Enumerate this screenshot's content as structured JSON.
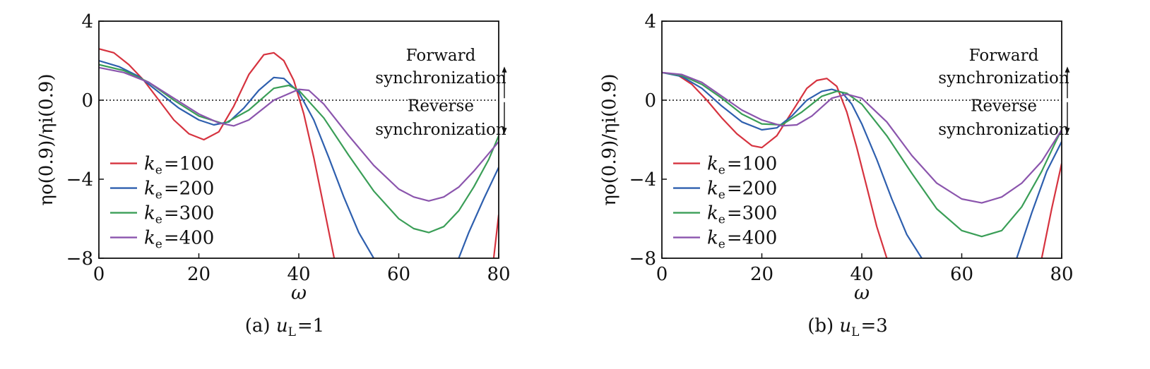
{
  "chart_data": [
    {
      "type": "line",
      "caption": "(a) u_L = 1",
      "caption_text": "(a)",
      "caption_var": "u",
      "caption_sub": "L",
      "caption_eq": "=1",
      "xlabel": "ω",
      "ylabel": "ηo(0.9)/ηi(0.9)",
      "xlim": [
        0,
        80
      ],
      "ylim": [
        -8,
        4
      ],
      "xticks": [
        0,
        20,
        40,
        60,
        80
      ],
      "yticks": [
        4,
        0,
        -4,
        -8
      ],
      "ytick_labels": [
        "4",
        "0",
        "−4",
        "−8"
      ],
      "reference_line": {
        "y": 0,
        "style": "dotted"
      },
      "annotations": {
        "forward": [
          "Forward",
          "synchronization"
        ],
        "reverse": [
          "Reverse",
          "synchronization"
        ]
      },
      "legend_position": "lower-left",
      "series": [
        {
          "name": "k_e=100",
          "label_var": "k",
          "label_sub": "e",
          "label_eq": "=100",
          "color": "#d6333f",
          "x": [
            0,
            3,
            6,
            9,
            12,
            15,
            18,
            21,
            24,
            27,
            30,
            33,
            35,
            37,
            39,
            41,
            43,
            45,
            47,
            48
          ],
          "y": [
            2.6,
            2.4,
            1.8,
            1.0,
            0.0,
            -1.0,
            -1.7,
            -2.0,
            -1.6,
            -0.3,
            1.3,
            2.3,
            2.4,
            2.0,
            1.0,
            -0.7,
            -2.9,
            -5.4,
            -7.9,
            -9.0
          ]
        },
        {
          "name": "k_e=200",
          "label_var": "k",
          "label_sub": "e",
          "label_eq": "=200",
          "color": "#2e5fae",
          "x": [
            0,
            4,
            8,
            12,
            16,
            20,
            23,
            26,
            29,
            32,
            35,
            37,
            40,
            43,
            46,
            49,
            52,
            55,
            57
          ],
          "y": [
            2.0,
            1.7,
            1.2,
            0.4,
            -0.4,
            -1.0,
            -1.25,
            -1.1,
            -0.4,
            0.5,
            1.15,
            1.1,
            0.4,
            -1.0,
            -2.9,
            -4.9,
            -6.7,
            -8.0,
            -8.6
          ]
        },
        {
          "name": "k_e=300",
          "label_var": "k",
          "label_sub": "e",
          "label_eq": "=300",
          "color": "#3a9e57",
          "x": [
            0,
            5,
            10,
            15,
            20,
            25,
            30,
            35,
            38,
            40,
            45,
            50,
            55,
            60,
            63,
            66,
            69,
            72,
            75,
            78,
            80
          ],
          "y": [
            1.8,
            1.5,
            0.9,
            0.0,
            -0.8,
            -1.2,
            -0.5,
            0.6,
            0.75,
            0.5,
            -0.9,
            -2.8,
            -4.6,
            -6.0,
            -6.5,
            -6.7,
            -6.4,
            -5.6,
            -4.4,
            -3.0,
            -1.8
          ]
        },
        {
          "name": "k_e=400",
          "label_var": "k",
          "label_sub": "e",
          "label_eq": "=400",
          "color": "#8b55ad",
          "x": [
            0,
            5,
            10,
            15,
            20,
            24,
            27,
            30,
            35,
            40,
            42,
            45,
            50,
            55,
            60,
            63,
            66,
            69,
            72,
            75,
            78,
            80
          ],
          "y": [
            1.65,
            1.4,
            0.9,
            0.1,
            -0.7,
            -1.15,
            -1.3,
            -1.0,
            0.0,
            0.55,
            0.5,
            -0.2,
            -1.8,
            -3.3,
            -4.5,
            -4.9,
            -5.1,
            -4.9,
            -4.4,
            -3.6,
            -2.7,
            -2.1
          ]
        }
      ]
    },
    {
      "type": "line",
      "caption": "(b) u_L = 3",
      "caption_text": "(b)",
      "caption_var": "u",
      "caption_sub": "L",
      "caption_eq": "=3",
      "xlabel": "ω",
      "ylabel": "ηo(0.9)/ηi(0.9)",
      "xlim": [
        0,
        80
      ],
      "ylim": [
        -8,
        4
      ],
      "xticks": [
        0,
        20,
        40,
        60,
        80
      ],
      "yticks": [
        4,
        0,
        -4,
        -8
      ],
      "ytick_labels": [
        "4",
        "0",
        "−4",
        "−8"
      ],
      "reference_line": {
        "y": 0,
        "style": "dotted"
      },
      "annotations": {
        "forward": [
          "Forward",
          "synchronization"
        ],
        "reverse": [
          "Reverse",
          "synchronization"
        ]
      },
      "legend_position": "lower-left",
      "series": [
        {
          "name": "k_e=100",
          "label_var": "k",
          "label_sub": "e",
          "label_eq": "=100",
          "color": "#d6333f",
          "x": [
            0,
            3,
            6,
            9,
            12,
            15,
            18,
            20,
            23,
            26,
            29,
            31,
            33,
            35,
            37,
            39,
            41,
            43,
            45,
            46
          ],
          "y": [
            1.4,
            1.3,
            0.8,
            0.0,
            -0.9,
            -1.7,
            -2.3,
            -2.4,
            -1.8,
            -0.6,
            0.6,
            1.0,
            1.1,
            0.7,
            -0.6,
            -2.4,
            -4.4,
            -6.4,
            -8.0,
            -8.6
          ]
        },
        {
          "name": "k_e=200",
          "label_var": "k",
          "label_sub": "e",
          "label_eq": "=200",
          "color": "#2e5fae",
          "x": [
            0,
            4,
            8,
            12,
            16,
            20,
            23,
            26,
            29,
            32,
            34,
            36,
            38,
            40,
            43,
            46,
            49,
            52,
            54
          ],
          "y": [
            1.4,
            1.2,
            0.6,
            -0.3,
            -1.1,
            -1.5,
            -1.4,
            -0.8,
            0.0,
            0.45,
            0.55,
            0.4,
            -0.2,
            -1.2,
            -3.0,
            -5.0,
            -6.8,
            -8.0,
            -8.6
          ]
        },
        {
          "name": "k_e=300",
          "label_var": "k",
          "label_sub": "e",
          "label_eq": "=300",
          "color": "#3a9e57",
          "x": [
            0,
            4,
            8,
            12,
            16,
            20,
            24,
            28,
            32,
            35,
            37,
            40,
            45,
            50,
            55,
            60,
            64,
            68,
            72,
            76,
            79,
            80
          ],
          "y": [
            1.4,
            1.25,
            0.8,
            0.1,
            -0.7,
            -1.2,
            -1.25,
            -0.6,
            0.2,
            0.45,
            0.35,
            -0.2,
            -1.8,
            -3.7,
            -5.5,
            -6.6,
            -6.9,
            -6.6,
            -5.4,
            -3.6,
            -2.0,
            -1.5
          ]
        },
        {
          "name": "k_e=400",
          "label_var": "k",
          "label_sub": "e",
          "label_eq": "=400",
          "color": "#8b55ad",
          "x": [
            0,
            4,
            8,
            12,
            16,
            20,
            24,
            27,
            30,
            34,
            37,
            40,
            45,
            50,
            55,
            60,
            64,
            68,
            72,
            76,
            79,
            80
          ],
          "y": [
            1.4,
            1.3,
            0.9,
            0.2,
            -0.5,
            -1.0,
            -1.3,
            -1.25,
            -0.8,
            0.1,
            0.3,
            0.1,
            -1.1,
            -2.8,
            -4.2,
            -5.0,
            -5.2,
            -4.9,
            -4.2,
            -3.1,
            -1.9,
            -1.5
          ]
        }
      ],
      "extra_series_segment": {
        "series": "k_e=100",
        "x": [
          76,
          78,
          80
        ],
        "y": [
          -8.0,
          -5.5,
          -3.2
        ]
      },
      "extra_series_segment_200": {
        "series": "k_e=200",
        "x": [
          71,
          74,
          77,
          80
        ],
        "y": [
          -8.0,
          -5.7,
          -3.6,
          -2.1
        ]
      }
    }
  ],
  "extra_segments_a": [
    {
      "series": "k_e=100",
      "x": [
        79,
        80
      ],
      "y": [
        -8.0,
        -5.8
      ]
    },
    {
      "series": "k_e=200",
      "x": [
        72,
        74,
        77,
        80
      ],
      "y": [
        -8.0,
        -6.7,
        -5.0,
        -3.4
      ]
    }
  ]
}
